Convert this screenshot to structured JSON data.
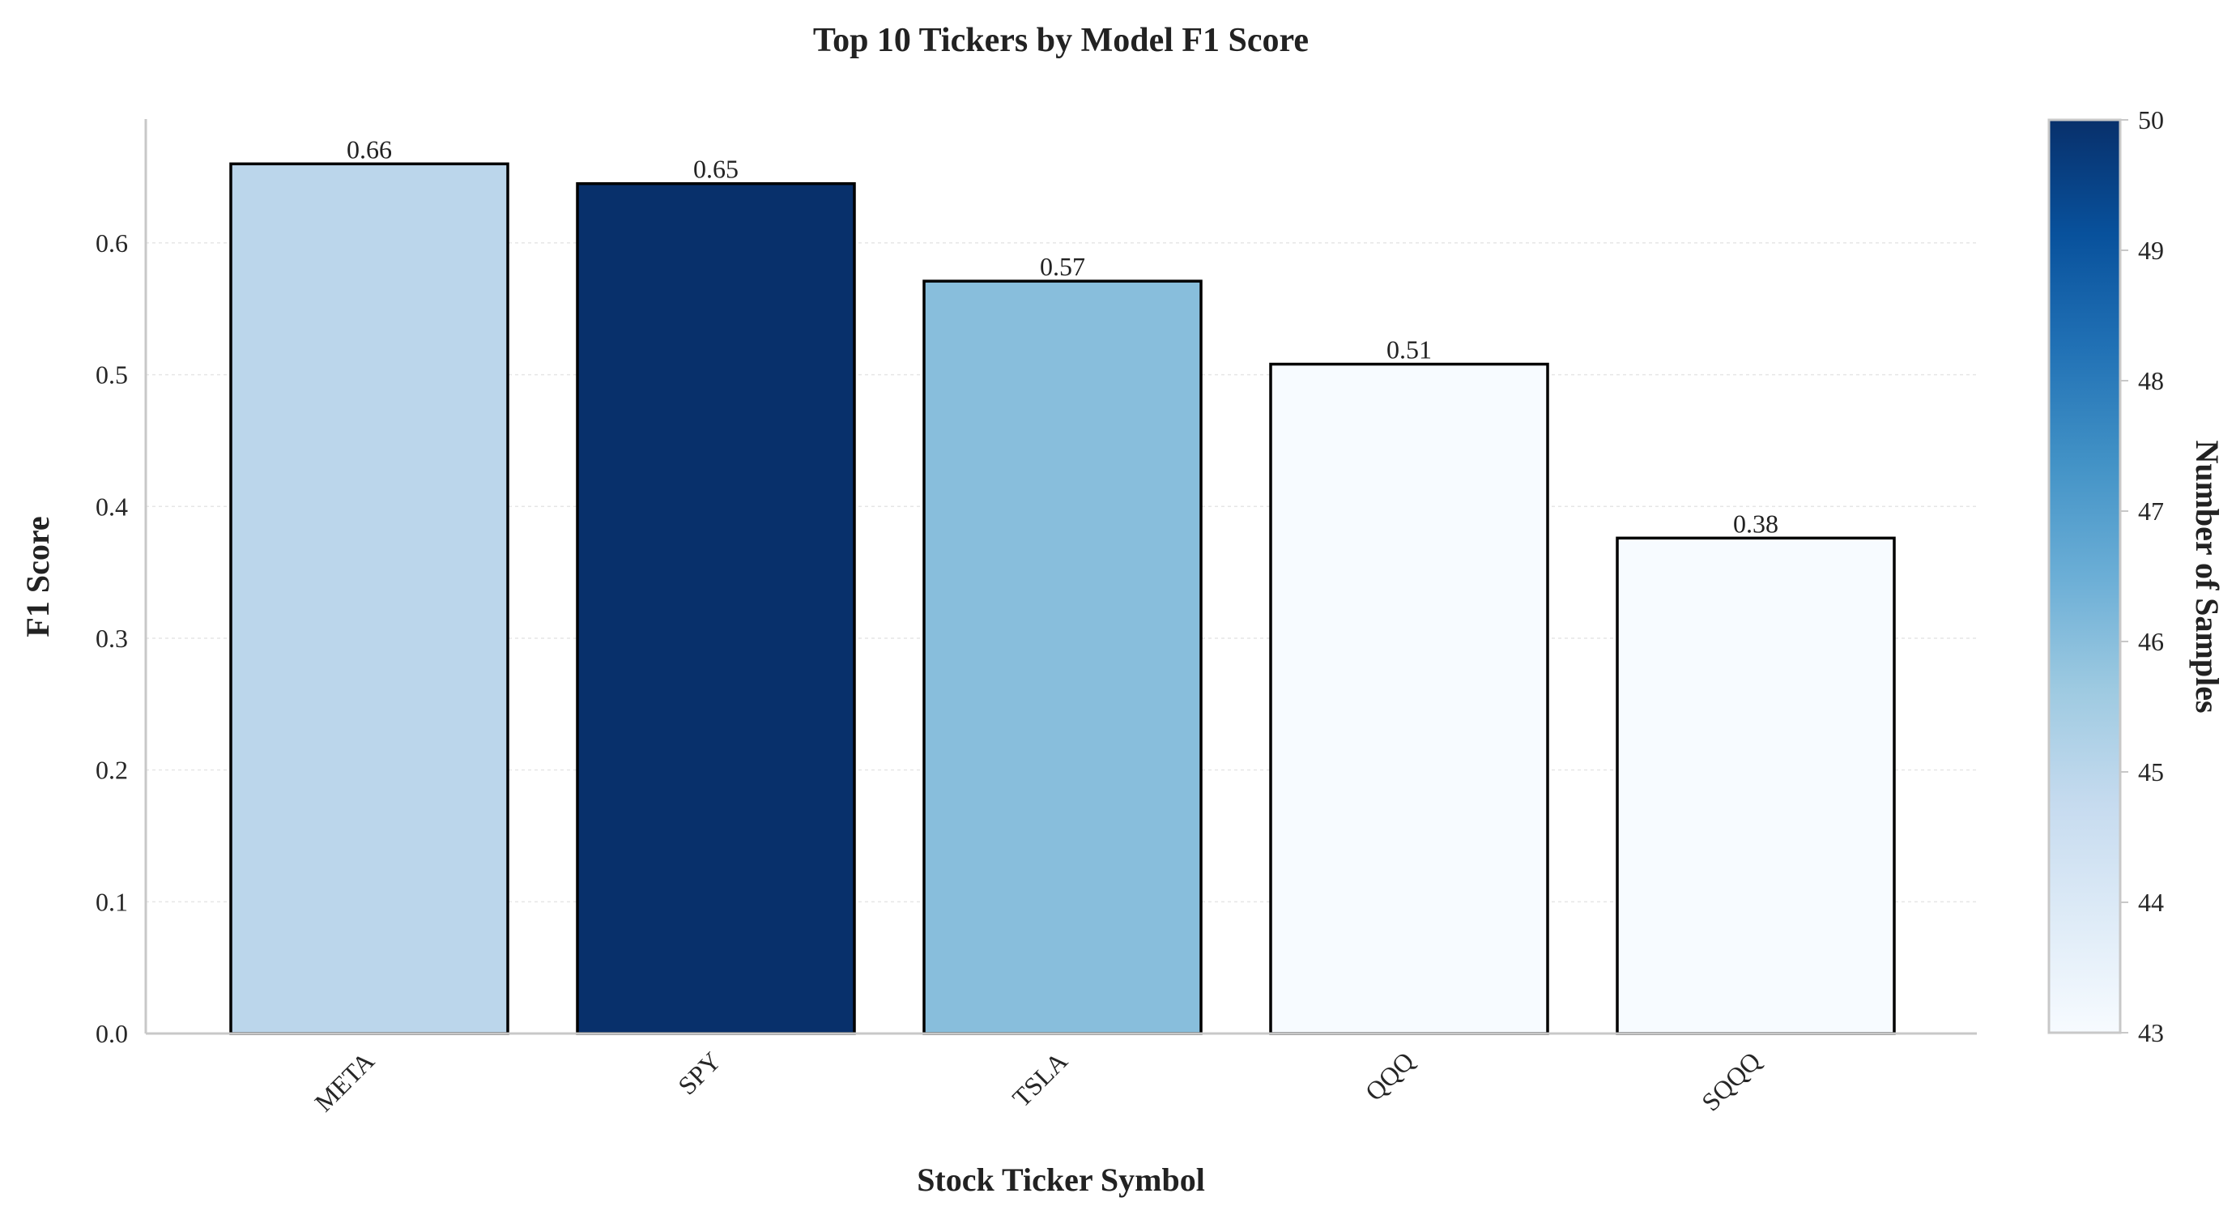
{
  "chart_data": {
    "type": "bar",
    "title": "Top 10 Tickers by Model F1 Score",
    "xlabel": "Stock Ticker Symbol",
    "ylabel": "F1 Score",
    "categories": [
      "META",
      "SPY",
      "TSLA",
      "QQQ",
      "SQQQ"
    ],
    "values": [
      0.66,
      0.645,
      0.571,
      0.508,
      0.376
    ],
    "value_labels": [
      "0.66",
      "0.65",
      "0.57",
      "0.51",
      "0.38"
    ],
    "samples": [
      45,
      50,
      46,
      43,
      43
    ],
    "ylim": [
      0,
      0.694
    ],
    "yticks": [
      0.0,
      0.1,
      0.2,
      0.3,
      0.4,
      0.5,
      0.6
    ],
    "ytick_labels": [
      "0.0",
      "0.1",
      "0.2",
      "0.3",
      "0.4",
      "0.5",
      "0.6"
    ],
    "grid": true,
    "colorbar": {
      "label": "Number of Samples",
      "range": [
        43,
        50
      ],
      "ticks": [
        "43",
        "44",
        "45",
        "46",
        "47",
        "48",
        "49",
        "50"
      ],
      "colormap": "Blues",
      "colors": [
        "#f7fbff",
        "#deebf7",
        "#c6dbef",
        "#9ecae1",
        "#6baed6",
        "#4292c6",
        "#2171b5",
        "#08519c",
        "#08306b"
      ]
    }
  }
}
